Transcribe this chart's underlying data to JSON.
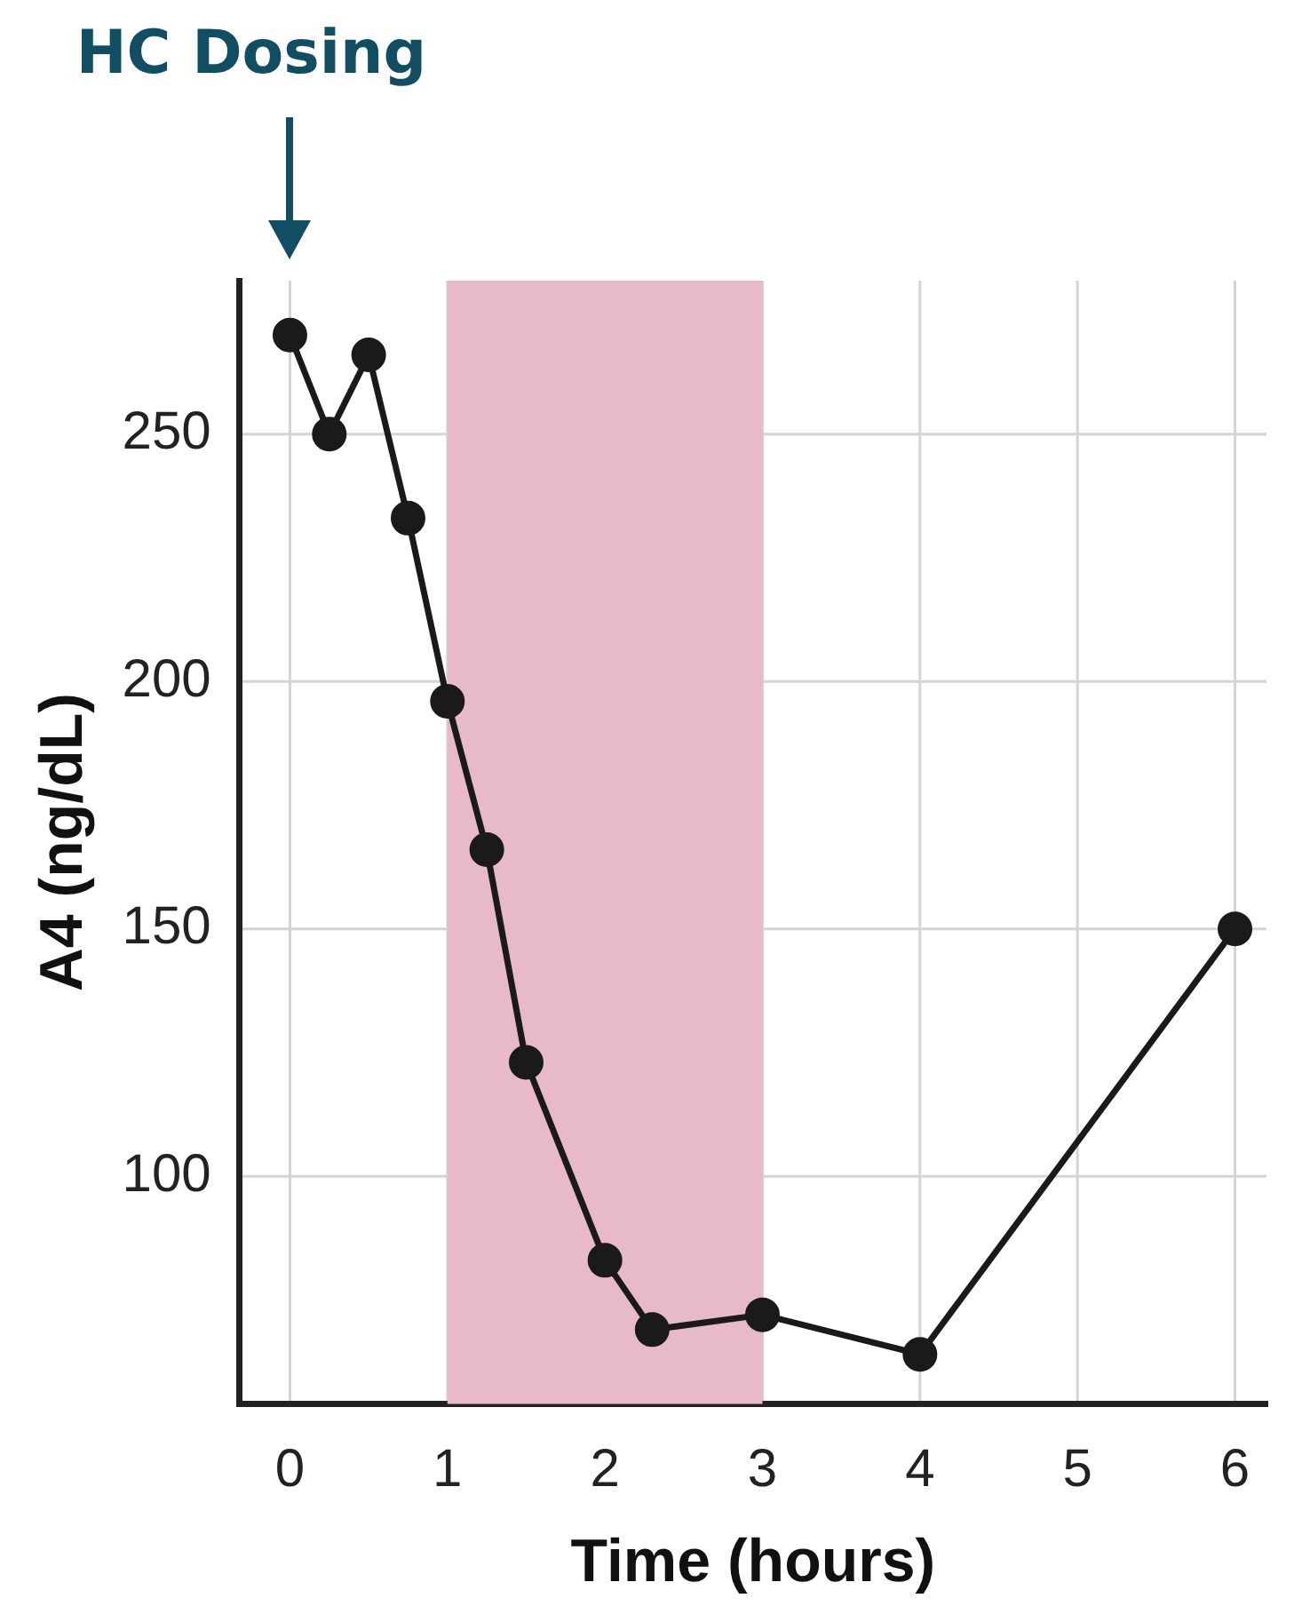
{
  "chart_data": {
    "type": "line",
    "xlabel": "Time (hours)",
    "ylabel": "A4 (ng/dL)",
    "x": [
      0,
      0.25,
      0.5,
      0.75,
      1,
      1.25,
      1.5,
      2,
      2.3,
      3,
      4,
      6
    ],
    "series": [
      {
        "color": "#1a1a1a",
        "values": [
          270,
          250,
          266,
          233,
          196,
          166,
          123,
          83,
          69,
          72,
          64,
          150
        ]
      }
    ],
    "xlim": [
      -0.32,
      6.2
    ],
    "xticks": [
      0,
      1,
      2,
      3,
      4,
      5,
      6
    ],
    "ylim": [
      54,
      281
    ],
    "yticks": [
      100,
      150,
      200,
      250
    ],
    "bands": [
      {
        "axis": "x",
        "from": 1,
        "to": 3,
        "color": "#e8b9c8"
      }
    ],
    "annotations": [
      "HC Dosing"
    ],
    "grid": true,
    "legend": false,
    "marker": "circle",
    "line_style": "solid"
  }
}
